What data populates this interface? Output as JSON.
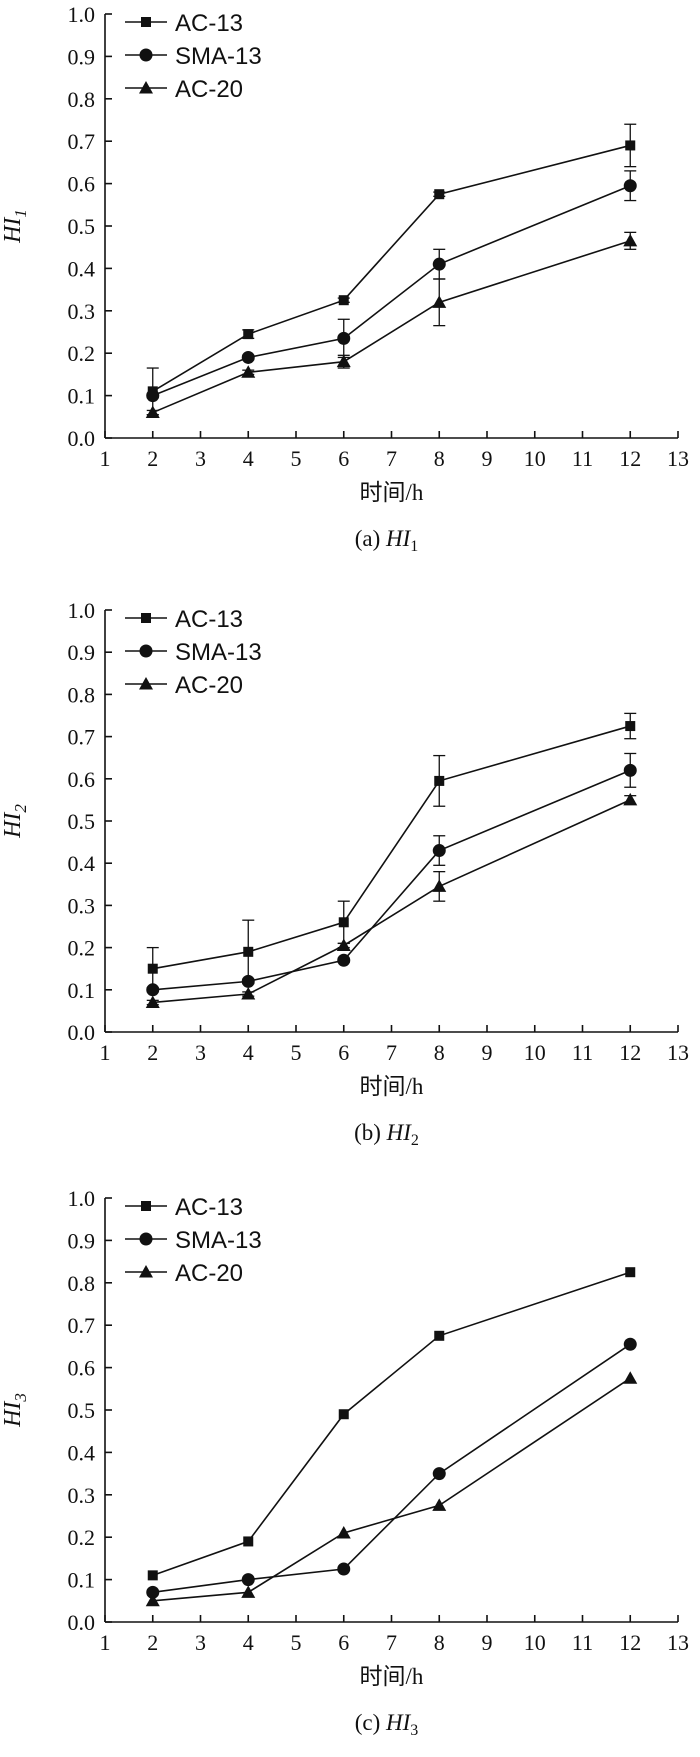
{
  "chart_data": [
    {
      "type": "line",
      "panel": "a",
      "caption": "(a)",
      "caption_var": "HI",
      "caption_sub": "1",
      "ylabel": "HI",
      "ylabel_sub": "1",
      "xlabel": "时间/h",
      "xlim": [
        1,
        13
      ],
      "ylim": [
        0,
        1.0
      ],
      "xticks": [
        "1",
        "2",
        "3",
        "4",
        "5",
        "6",
        "7",
        "8",
        "9",
        "10",
        "11",
        "12",
        "13"
      ],
      "yticks": [
        "0.0",
        "0.1",
        "0.2",
        "0.3",
        "0.4",
        "0.5",
        "0.6",
        "0.7",
        "0.8",
        "0.9",
        "1.0"
      ],
      "x": [
        2,
        4,
        6,
        8,
        12
      ],
      "series": [
        {
          "name": "AC-13",
          "marker": "square",
          "values": [
            0.11,
            0.245,
            0.325,
            0.575,
            0.69
          ],
          "errors": [
            0.055,
            0.01,
            0.005,
            0.005,
            0.05
          ]
        },
        {
          "name": "SMA-13",
          "marker": "circle",
          "values": [
            0.1,
            0.19,
            0.235,
            0.41,
            0.595
          ],
          "errors": [
            0.005,
            0.005,
            0.045,
            0.035,
            0.035
          ]
        },
        {
          "name": "AC-20",
          "marker": "triangle",
          "values": [
            0.06,
            0.155,
            0.18,
            0.32,
            0.465
          ],
          "errors": [
            0.005,
            0.005,
            0.015,
            0.055,
            0.02
          ]
        }
      ]
    },
    {
      "type": "line",
      "panel": "b",
      "caption": "(b)",
      "caption_var": "HI",
      "caption_sub": "2",
      "ylabel": "HI",
      "ylabel_sub": "2",
      "xlabel": "时间/h",
      "xlim": [
        1,
        13
      ],
      "ylim": [
        0,
        1.0
      ],
      "xticks": [
        "1",
        "2",
        "3",
        "4",
        "5",
        "6",
        "7",
        "8",
        "9",
        "10",
        "11",
        "12",
        "13"
      ],
      "yticks": [
        "0.0",
        "0.1",
        "0.2",
        "0.3",
        "0.4",
        "0.5",
        "0.6",
        "0.7",
        "0.8",
        "0.9",
        "1.0"
      ],
      "x": [
        2,
        4,
        6,
        8,
        12
      ],
      "series": [
        {
          "name": "AC-13",
          "marker": "square",
          "values": [
            0.15,
            0.19,
            0.26,
            0.595,
            0.725
          ],
          "errors": [
            0.05,
            0.075,
            0.05,
            0.06,
            0.03
          ]
        },
        {
          "name": "SMA-13",
          "marker": "circle",
          "values": [
            0.1,
            0.12,
            0.17,
            0.43,
            0.62
          ],
          "errors": [
            0.005,
            0.005,
            0.005,
            0.035,
            0.04
          ]
        },
        {
          "name": "AC-20",
          "marker": "triangle",
          "values": [
            0.07,
            0.09,
            0.205,
            0.345,
            0.55
          ],
          "errors": [
            0.005,
            0.005,
            0.005,
            0.035,
            0.01
          ]
        }
      ]
    },
    {
      "type": "line",
      "panel": "c",
      "caption": "(c)",
      "caption_var": "HI",
      "caption_sub": "3",
      "ylabel": "HI",
      "ylabel_sub": "3",
      "xlabel": "时间/h",
      "xlim": [
        1,
        13
      ],
      "ylim": [
        0,
        1.0
      ],
      "xticks": [
        "1",
        "2",
        "3",
        "4",
        "5",
        "6",
        "7",
        "8",
        "9",
        "10",
        "11",
        "12",
        "13"
      ],
      "yticks": [
        "0.0",
        "0.1",
        "0.2",
        "0.3",
        "0.4",
        "0.5",
        "0.6",
        "0.7",
        "0.8",
        "0.9",
        "1.0"
      ],
      "x": [
        2,
        4,
        6,
        8,
        12
      ],
      "series": [
        {
          "name": "AC-13",
          "marker": "square",
          "values": [
            0.11,
            0.19,
            0.49,
            0.675,
            0.825
          ],
          "errors": [
            0,
            0,
            0,
            0,
            0
          ]
        },
        {
          "name": "SMA-13",
          "marker": "circle",
          "values": [
            0.07,
            0.1,
            0.125,
            0.35,
            0.655
          ],
          "errors": [
            0,
            0,
            0,
            0,
            0
          ]
        },
        {
          "name": "AC-20",
          "marker": "triangle",
          "values": [
            0.05,
            0.07,
            0.21,
            0.275,
            0.575
          ],
          "errors": [
            0,
            0,
            0,
            0,
            0
          ]
        }
      ]
    }
  ]
}
